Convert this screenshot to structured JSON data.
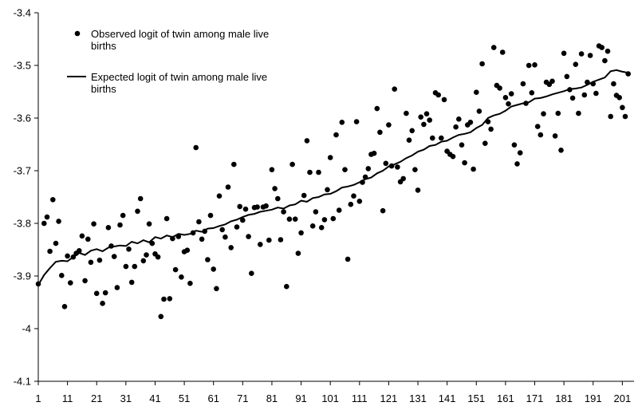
{
  "chart_data": {
    "type": "scatter",
    "title": "",
    "xlabel": "",
    "ylabel": "",
    "xlim": [
      1,
      205
    ],
    "ylim": [
      -4.1,
      -3.4
    ],
    "x_ticks": [
      1,
      11,
      21,
      31,
      41,
      51,
      61,
      71,
      81,
      91,
      101,
      111,
      121,
      131,
      141,
      151,
      161,
      171,
      181,
      191,
      201
    ],
    "y_ticks": [
      -3.4,
      -3.5,
      -3.6,
      -3.7,
      -3.8,
      -3.9,
      -4,
      -4.1
    ],
    "grid": false,
    "legend_position": "top-left",
    "legend": {
      "observed": "Observed logit of twin among male live births",
      "expected": "Expected logit of twin among male live births"
    },
    "series": [
      {
        "name": "Observed logit of twin among male live births",
        "kind": "points",
        "x": [
          1,
          3,
          4,
          5,
          6,
          7,
          8,
          9,
          10,
          11,
          12,
          13,
          14,
          15,
          16,
          17,
          18,
          19,
          20,
          21,
          22,
          23,
          24,
          25,
          26,
          27,
          28,
          29,
          30,
          31,
          32,
          33,
          34,
          35,
          36,
          37,
          38,
          39,
          40,
          41,
          42,
          43,
          44,
          45,
          46,
          47,
          48,
          49,
          50,
          51,
          52,
          53,
          54,
          55,
          56,
          57,
          58,
          59,
          60,
          61,
          62,
          63,
          64,
          65,
          66,
          67,
          68,
          69,
          70,
          71,
          72,
          73,
          74,
          75,
          76,
          77,
          78,
          79,
          80,
          81,
          82,
          83,
          84,
          85,
          86,
          87,
          88,
          89,
          90,
          91,
          92,
          93,
          94,
          95,
          96,
          97,
          98,
          99,
          100,
          101,
          102,
          103,
          104,
          105,
          106,
          107,
          108,
          109,
          110,
          111,
          112,
          113,
          114,
          115,
          116,
          117,
          118,
          119,
          120,
          121,
          122,
          123,
          124,
          125,
          126,
          127,
          128,
          129,
          130,
          131,
          132,
          133,
          134,
          135,
          136,
          137,
          138,
          139,
          140,
          141,
          142,
          143,
          144,
          145,
          146,
          147,
          148,
          149,
          150,
          151,
          152,
          153,
          154,
          155,
          156,
          157,
          158,
          159,
          160,
          161,
          162,
          163,
          164,
          165,
          166,
          167,
          168,
          169,
          170,
          171,
          172,
          173,
          174,
          175,
          176,
          177,
          178,
          179,
          180,
          181,
          182,
          183,
          184,
          185,
          186,
          187,
          188,
          189,
          190,
          191,
          192,
          193,
          194,
          195,
          196,
          197,
          198,
          199,
          200,
          201,
          202,
          203
        ],
        "y": [
          -3.915,
          -3.8,
          -3.788,
          -3.853,
          -3.755,
          -3.838,
          -3.796,
          -3.899,
          -3.958,
          -3.862,
          -3.913,
          -3.864,
          -3.857,
          -3.852,
          -3.824,
          -3.909,
          -3.83,
          -3.874,
          -3.801,
          -3.933,
          -3.87,
          -3.952,
          -3.932,
          -3.808,
          -3.843,
          -3.863,
          -3.922,
          -3.803,
          -3.785,
          -3.882,
          -3.849,
          -3.912,
          -3.882,
          -3.777,
          -3.753,
          -3.871,
          -3.86,
          -3.801,
          -3.838,
          -3.858,
          -3.864,
          -3.977,
          -3.944,
          -3.791,
          -3.943,
          -3.829,
          -3.888,
          -3.825,
          -3.902,
          -3.854,
          -3.851,
          -3.914,
          -3.818,
          -3.656,
          -3.797,
          -3.83,
          -3.815,
          -3.869,
          -3.785,
          -3.887,
          -3.924,
          -3.748,
          -3.812,
          -3.826,
          -3.731,
          -3.846,
          -3.688,
          -3.807,
          -3.768,
          -3.794,
          -3.773,
          -3.825,
          -3.895,
          -3.77,
          -3.769,
          -3.84,
          -3.769,
          -3.767,
          -3.832,
          -3.698,
          -3.734,
          -3.753,
          -3.831,
          -3.778,
          -3.92,
          -3.792,
          -3.688,
          -3.792,
          -3.857,
          -3.818,
          -3.747,
          -3.643,
          -3.703,
          -3.805,
          -3.778,
          -3.703,
          -3.808,
          -3.793,
          -3.736,
          -3.675,
          -3.791,
          -3.632,
          -3.775,
          -3.608,
          -3.698,
          -3.868,
          -3.764,
          -3.748,
          -3.607,
          -3.758,
          -3.722,
          -3.712,
          -3.696,
          -3.669,
          -3.667,
          -3.582,
          -3.627,
          -3.776,
          -3.686,
          -3.613,
          -3.691,
          -3.545,
          -3.693,
          -3.721,
          -3.715,
          -3.591,
          -3.642,
          -3.624,
          -3.698,
          -3.737,
          -3.598,
          -3.612,
          -3.592,
          -3.604,
          -3.638,
          -3.552,
          -3.556,
          -3.638,
          -3.565,
          -3.663,
          -3.669,
          -3.673,
          -3.617,
          -3.602,
          -3.651,
          -3.685,
          -3.613,
          -3.608,
          -3.697,
          -3.551,
          -3.587,
          -3.497,
          -3.648,
          -3.607,
          -3.621,
          -3.466,
          -3.538,
          -3.543,
          -3.475,
          -3.561,
          -3.573,
          -3.554,
          -3.651,
          -3.687,
          -3.666,
          -3.535,
          -3.572,
          -3.5,
          -3.552,
          -3.499,
          -3.616,
          -3.632,
          -3.592,
          -3.532,
          -3.536,
          -3.53,
          -3.634,
          -3.591,
          -3.661,
          -3.477,
          -3.521,
          -3.546,
          -3.562,
          -3.498,
          -3.591,
          -3.478,
          -3.556,
          -3.532,
          -3.481,
          -3.535,
          -3.553,
          -3.463,
          -3.466,
          -3.491,
          -3.473,
          -3.597,
          -3.535,
          -3.557,
          -3.561,
          -3.58,
          -3.597,
          -3.516
        ]
      },
      {
        "name": "Expected logit of twin among male live births",
        "kind": "line",
        "x": [
          1,
          3,
          5,
          7,
          9,
          11,
          13,
          15,
          17,
          19,
          21,
          23,
          25,
          27,
          29,
          31,
          33,
          35,
          37,
          39,
          41,
          43,
          45,
          47,
          49,
          51,
          53,
          55,
          57,
          59,
          61,
          63,
          65,
          67,
          69,
          71,
          73,
          75,
          77,
          79,
          81,
          83,
          85,
          87,
          89,
          91,
          93,
          95,
          97,
          99,
          101,
          103,
          105,
          107,
          109,
          111,
          113,
          115,
          117,
          119,
          121,
          123,
          125,
          127,
          129,
          131,
          133,
          135,
          137,
          139,
          141,
          143,
          145,
          147,
          149,
          151,
          153,
          155,
          157,
          159,
          161,
          163,
          165,
          167,
          169,
          171,
          173,
          175,
          177,
          179,
          181,
          183,
          185,
          187,
          189,
          191,
          193,
          195,
          197,
          199,
          201,
          203
        ],
        "y": [
          -3.917,
          -3.898,
          -3.885,
          -3.873,
          -3.871,
          -3.872,
          -3.864,
          -3.856,
          -3.86,
          -3.852,
          -3.849,
          -3.853,
          -3.846,
          -3.844,
          -3.842,
          -3.843,
          -3.835,
          -3.838,
          -3.832,
          -3.836,
          -3.826,
          -3.829,
          -3.823,
          -3.826,
          -3.82,
          -3.822,
          -3.82,
          -3.814,
          -3.816,
          -3.81,
          -3.809,
          -3.805,
          -3.802,
          -3.796,
          -3.793,
          -3.788,
          -3.784,
          -3.782,
          -3.778,
          -3.776,
          -3.774,
          -3.77,
          -3.772,
          -3.766,
          -3.764,
          -3.757,
          -3.759,
          -3.752,
          -3.75,
          -3.745,
          -3.744,
          -3.739,
          -3.732,
          -3.73,
          -3.727,
          -3.722,
          -3.716,
          -3.713,
          -3.705,
          -3.7,
          -3.692,
          -3.688,
          -3.683,
          -3.676,
          -3.671,
          -3.664,
          -3.66,
          -3.653,
          -3.651,
          -3.645,
          -3.643,
          -3.637,
          -3.632,
          -3.63,
          -3.627,
          -3.619,
          -3.613,
          -3.6,
          -3.595,
          -3.592,
          -3.586,
          -3.578,
          -3.575,
          -3.572,
          -3.57,
          -3.563,
          -3.562,
          -3.559,
          -3.555,
          -3.552,
          -3.549,
          -3.545,
          -3.544,
          -3.542,
          -3.537,
          -3.531,
          -3.527,
          -3.523,
          -3.511,
          -3.509,
          -3.512,
          -3.514
        ]
      }
    ]
  }
}
